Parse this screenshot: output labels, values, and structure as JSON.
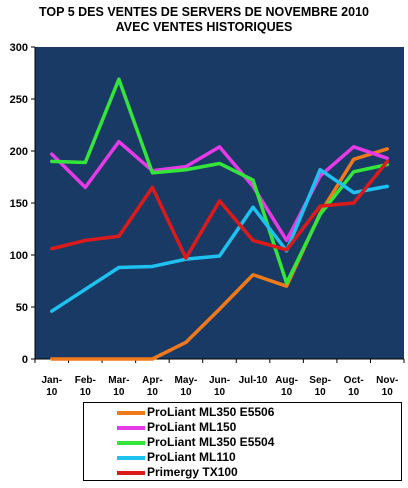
{
  "chart_data": {
    "type": "line",
    "title_line1": "TOP 5 DES VENTES DE SERVERS DE NOVEMBRE 2010",
    "title_line2": "AVEC VENTES HISTORIQUES",
    "xlabel": "",
    "ylabel": "",
    "ylim": [
      0,
      300
    ],
    "yticks": [
      "0",
      "50",
      "100",
      "150",
      "200",
      "250",
      "300"
    ],
    "categories": [
      [
        "Jan-",
        "10"
      ],
      [
        "Feb-",
        "10"
      ],
      [
        "Mar-",
        "10"
      ],
      [
        "Apr-",
        "10"
      ],
      [
        "May-",
        "10"
      ],
      [
        "Jun-",
        "10"
      ],
      [
        "Jul-10",
        ""
      ],
      [
        "Aug-",
        "10"
      ],
      [
        "Sep-",
        "10"
      ],
      [
        "Oct-",
        "10"
      ],
      [
        "Nov-",
        "10"
      ]
    ],
    "background": "#1a3a66",
    "grid": false,
    "legend_position": "bottom",
    "series": [
      {
        "name": "ProLiant ML350 E5506",
        "color": "#f07a1a",
        "values": [
          0,
          0,
          0,
          0,
          16,
          48,
          81,
          70,
          140,
          192,
          202
        ]
      },
      {
        "name": "ProLiant ML150",
        "color": "#e63ae6",
        "values": [
          197,
          165,
          209,
          181,
          185,
          204,
          166,
          114,
          176,
          204,
          193
        ]
      },
      {
        "name": "ProLiant ML350 E5504",
        "color": "#35e63a",
        "values": [
          190,
          189,
          269,
          179,
          182,
          188,
          172,
          73,
          139,
          180,
          187
        ]
      },
      {
        "name": "ProLiant ML110",
        "color": "#1ec2f0",
        "values": [
          46,
          67,
          88,
          89,
          96,
          99,
          146,
          104,
          182,
          160,
          166
        ]
      },
      {
        "name": "Primergy TX100",
        "color": "#dd1a1a",
        "values": [
          106,
          114,
          118,
          165,
          97,
          152,
          114,
          105,
          147,
          150,
          190
        ]
      }
    ]
  }
}
